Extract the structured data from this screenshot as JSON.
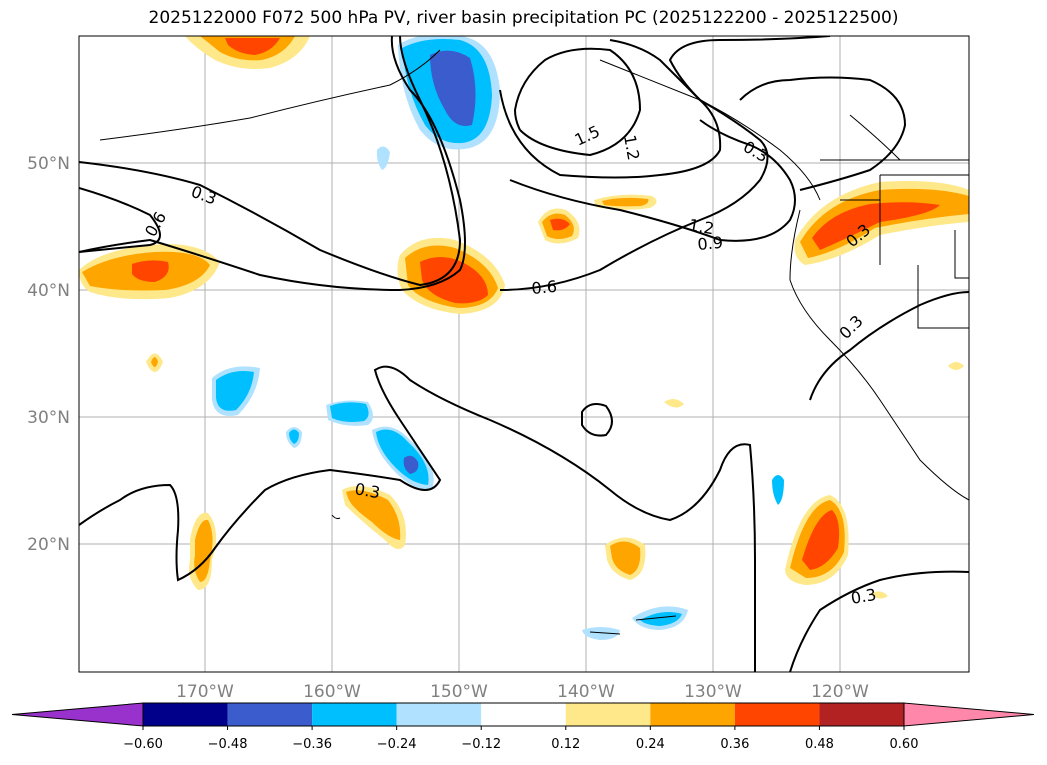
{
  "title": "2025122000 F072 500 hPa PV, river basin precipitation PC (2025122200 - 2025122500)",
  "map": {
    "lat_labels": [
      "50°N",
      "40°N",
      "30°N",
      "20°N"
    ],
    "lon_labels": [
      "170°W",
      "160°W",
      "150°W",
      "140°W",
      "130°W",
      "120°W"
    ],
    "pv_contour_labels": [
      "0.3",
      "0.6",
      "1.5",
      "1.2",
      "0.3",
      "1.2",
      "0.9",
      "0.6",
      "0.3",
      "0.3",
      "0.3",
      "0.3"
    ]
  },
  "colorbar": {
    "ticks": [
      "−0.60",
      "−0.48",
      "−0.36",
      "−0.24",
      "−0.12",
      "0.12",
      "0.24",
      "0.36",
      "0.48",
      "0.60"
    ],
    "colors": {
      "under": "#9932cc",
      "bins": [
        "#00008b",
        "#3a5ccc",
        "#00bfff",
        "#b0e2ff",
        "#ffffff",
        "#ffe88a",
        "#ffa500",
        "#ff4500",
        "#b22222"
      ],
      "over": "#ff88aa"
    }
  }
}
